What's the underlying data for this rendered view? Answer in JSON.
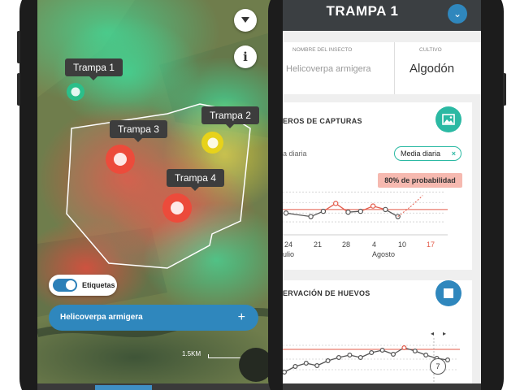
{
  "map_screen": {
    "traps": [
      {
        "label": "Trampa 1",
        "status": "green"
      },
      {
        "label": "Trampa 2",
        "status": "yellow"
      },
      {
        "label": "Trampa 3",
        "status": "red"
      },
      {
        "label": "Trampa 4",
        "status": "red"
      }
    ],
    "layers_icon": "layers-icon",
    "info_icon": "info-icon",
    "info_glyph": "i",
    "labels_toggle": {
      "label": "Etiquetas",
      "on": true
    },
    "insect_selector": {
      "label": "Helicoverpa armigera",
      "add_glyph": "+"
    },
    "scale_label": "1.5KM",
    "colors": {
      "green": "#2bbf8a",
      "yellow": "#e7d21a",
      "red": "#ec4b3b",
      "accent": "#2f87bd"
    }
  },
  "detail_screen": {
    "title": "TRAMPA 1",
    "collapse_glyph": "⌄",
    "insect": {
      "header": "NOMBRE DEL INSECTO",
      "value": "Helicoverpa armigera"
    },
    "crop": {
      "header": "CULTIVO",
      "value": "Algodón"
    },
    "captures_card": {
      "title": "EROS DE CAPTURAS",
      "icon": "image-icon",
      "sub_label": "a diaria",
      "chip": {
        "label": "Media diaria",
        "close": "×"
      },
      "forecast_badge": "80% de probabilidad",
      "x_ticks": [
        "24",
        "21",
        "28",
        "4",
        "10",
        "17"
      ],
      "month_labels": [
        "ulio",
        "Agosto"
      ]
    },
    "eggs_card": {
      "title": "ERVACIÓN DE HUEVOS",
      "icon": "square-icon",
      "highlight_value": "7",
      "nav_prev": "◂",
      "nav_next": "▸"
    }
  },
  "chart_data": [
    {
      "type": "line",
      "title": "EROS DE CAPTURAS",
      "x": [
        "24",
        "",
        "21",
        "",
        "28",
        "",
        "",
        "4",
        "",
        "10",
        "",
        "17"
      ],
      "series": [
        {
          "values": [
            2.2,
            null,
            1.8,
            2.4,
            3.3,
            2.3,
            2.4,
            3.0,
            2.6,
            1.8,
            null,
            null
          ]
        },
        {
          "values": [
            null,
            null,
            null,
            null,
            null,
            null,
            null,
            null,
            null,
            1.8,
            2.9,
            4.2
          ]
        }
      ],
      "threshold": 2.6,
      "annotations": [
        "80% de probabilidad"
      ]
    },
    {
      "type": "line",
      "title": "ERVACIÓN DE HUEVOS",
      "series": [
        {
          "values": [
            1.2,
            1.9,
            2.3,
            2.0,
            2.6,
            3.0,
            3.3,
            3.0,
            3.6,
            3.9,
            3.4,
            4.2,
            3.8,
            3.3,
            2.9,
            2.7
          ]
        }
      ],
      "threshold": 4.0,
      "annotations": [
        "7"
      ]
    }
  ]
}
